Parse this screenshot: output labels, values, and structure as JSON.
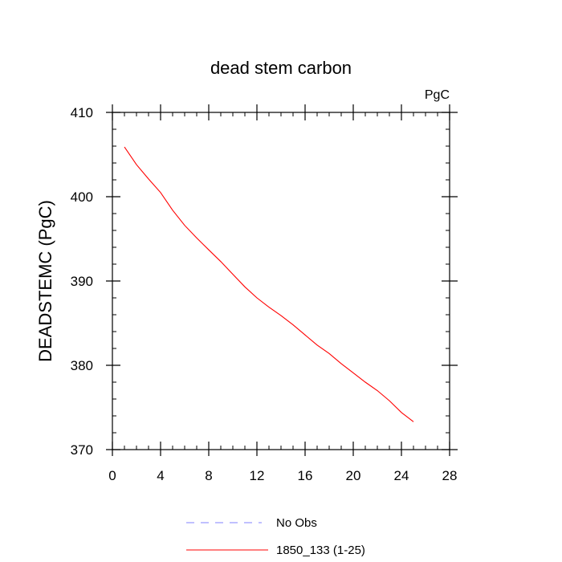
{
  "chart_data": {
    "type": "line",
    "title": "dead stem carbon",
    "units_label": "PgC",
    "ylabel": "DEADSTEMC  (PgC)",
    "xlabel": "",
    "xlim": [
      0,
      28
    ],
    "ylim": [
      370,
      410
    ],
    "x_ticks": [
      0,
      4,
      8,
      12,
      16,
      20,
      24,
      28
    ],
    "y_ticks": [
      370,
      380,
      390,
      400,
      410
    ],
    "x_tick_labels": [
      "0",
      "4",
      "8",
      "12",
      "16",
      "20",
      "24",
      "28"
    ],
    "y_tick_labels": [
      "370",
      "380",
      "390",
      "400",
      "410"
    ],
    "series": [
      {
        "name": "1850_133 (1-25)",
        "color": "#ff0000",
        "style": "solid",
        "x": [
          1,
          2,
          3,
          4,
          5,
          6,
          7,
          8,
          9,
          10,
          11,
          12,
          13,
          14,
          15,
          16,
          17,
          18,
          19,
          20,
          21,
          22,
          23,
          24,
          25
        ],
        "y": [
          405.9,
          403.8,
          402.1,
          400.5,
          398.4,
          396.6,
          395.1,
          393.7,
          392.3,
          390.8,
          389.3,
          388.0,
          386.9,
          385.9,
          384.8,
          383.6,
          382.4,
          381.4,
          380.2,
          379.1,
          378.0,
          377.0,
          375.8,
          374.4,
          373.3
        ]
      }
    ],
    "legend": [
      {
        "label": "No Obs",
        "color": "#8080ff",
        "style": "dashed"
      },
      {
        "label": "1850_133 (1-25)",
        "color": "#ff0000",
        "style": "solid"
      }
    ],
    "legend_position": "bottom-center",
    "grid": false
  }
}
